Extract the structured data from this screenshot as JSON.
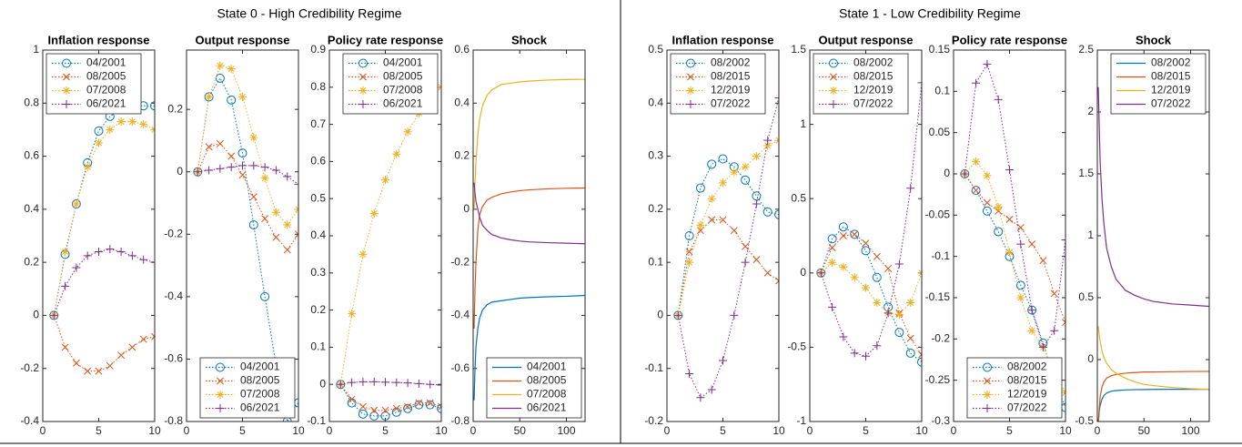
{
  "groups": [
    {
      "title": "State 0 - High Credibility Regime"
    },
    {
      "title": "State 1 - Low Credibility Regime"
    }
  ],
  "chart_data": [
    {
      "type": "line",
      "title": "Inflation response",
      "linestyle": "dotted",
      "legend": "upper left",
      "x": [
        1,
        2,
        3,
        4,
        5,
        6,
        7,
        8,
        9,
        10
      ],
      "xlim": [
        0,
        10
      ],
      "xticks": [
        0,
        5,
        10
      ],
      "ylim": [
        -0.4,
        1
      ],
      "yticks": [
        -0.4,
        -0.2,
        0,
        0.2,
        0.4,
        0.6,
        0.8,
        1
      ],
      "series": [
        {
          "name": "04/2001",
          "color": "#0072BD",
          "marker": "circle",
          "values": [
            0,
            0.23,
            0.42,
            0.575,
            0.695,
            0.75,
            0.78,
            0.79,
            0.79,
            0.79
          ]
        },
        {
          "name": "08/2005",
          "color": "#D95319",
          "marker": "x",
          "values": [
            0,
            -0.12,
            -0.18,
            -0.21,
            -0.21,
            -0.19,
            -0.15,
            -0.12,
            -0.09,
            -0.08
          ]
        },
        {
          "name": "07/2008",
          "color": "#EDB120",
          "marker": "asterisk",
          "values": [
            0,
            0.24,
            0.42,
            0.56,
            0.65,
            0.7,
            0.73,
            0.73,
            0.72,
            0.7
          ]
        },
        {
          "name": "06/2021",
          "color": "#7E2F8E",
          "marker": "plus",
          "values": [
            0,
            0.11,
            0.18,
            0.225,
            0.24,
            0.25,
            0.24,
            0.225,
            0.21,
            0.2
          ]
        }
      ]
    },
    {
      "type": "line",
      "title": "Output response",
      "linestyle": "dotted",
      "legend": "lower right",
      "x": [
        1,
        2,
        3,
        4,
        5,
        6,
        7,
        8,
        9,
        10
      ],
      "xlim": [
        0,
        10
      ],
      "xticks": [
        0,
        5,
        10
      ],
      "ylim": [
        -0.8,
        0.39
      ],
      "yticks": [
        -0.8,
        -0.6,
        -0.4,
        -0.2,
        0,
        0.2
      ],
      "series": [
        {
          "name": "04/2001",
          "color": "#0072BD",
          "marker": "circle",
          "values": [
            0,
            0.24,
            0.3,
            0.23,
            0.06,
            -0.17,
            -0.4,
            -0.62,
            -0.8,
            -0.74
          ]
        },
        {
          "name": "08/2005",
          "color": "#D95319",
          "marker": "x",
          "values": [
            0,
            0.08,
            0.09,
            0.05,
            -0.01,
            -0.08,
            -0.15,
            -0.21,
            -0.25,
            -0.2
          ]
        },
        {
          "name": "07/2008",
          "color": "#EDB120",
          "marker": "asterisk",
          "values": [
            0,
            0.24,
            0.34,
            0.33,
            0.24,
            0.11,
            -0.02,
            -0.13,
            -0.17,
            -0.12
          ]
        },
        {
          "name": "06/2021",
          "color": "#7E2F8E",
          "marker": "plus",
          "values": [
            0,
            0.005,
            0.01,
            0.015,
            0.02,
            0.02,
            0.015,
            0.005,
            -0.015,
            -0.04
          ]
        }
      ]
    },
    {
      "type": "line",
      "title": "Policy rate response",
      "linestyle": "dotted",
      "legend": "upper right",
      "x": [
        1,
        2,
        3,
        4,
        5,
        6,
        7,
        8,
        9,
        10
      ],
      "xlim": [
        0,
        10
      ],
      "xticks": [
        0,
        5,
        10
      ],
      "ylim": [
        -0.1,
        0.9
      ],
      "yticks": [
        -0.1,
        0,
        0.1,
        0.2,
        0.3,
        0.4,
        0.5,
        0.6,
        0.7,
        0.8,
        0.9
      ],
      "series": [
        {
          "name": "04/2001",
          "color": "#0072BD",
          "marker": "circle",
          "values": [
            0,
            -0.05,
            -0.08,
            -0.085,
            -0.085,
            -0.075,
            -0.065,
            -0.055,
            -0.055,
            -0.065
          ]
        },
        {
          "name": "08/2005",
          "color": "#D95319",
          "marker": "x",
          "values": [
            0,
            -0.04,
            -0.06,
            -0.07,
            -0.07,
            -0.065,
            -0.06,
            -0.05,
            -0.05,
            -0.06
          ]
        },
        {
          "name": "07/2008",
          "color": "#EDB120",
          "marker": "asterisk",
          "values": [
            0,
            0.19,
            0.35,
            0.46,
            0.55,
            0.62,
            0.68,
            0.73,
            0.77,
            0.8
          ]
        },
        {
          "name": "06/2021",
          "color": "#7E2F8E",
          "marker": "plus",
          "values": [
            0,
            0.005,
            0.007,
            0.007,
            0.006,
            0.005,
            0.004,
            0.002,
            0,
            -0.002
          ]
        }
      ]
    },
    {
      "type": "line",
      "title": "Shock",
      "linestyle": "solid",
      "legend": "lower right",
      "x": [
        1,
        2,
        3,
        5,
        7,
        10,
        15,
        20,
        30,
        40,
        50,
        60,
        80,
        100,
        120
      ],
      "xlim": [
        0,
        120
      ],
      "xticks": [
        0,
        50,
        100
      ],
      "ylim": [
        -0.8,
        0.6
      ],
      "yticks": [
        -0.8,
        -0.6,
        -0.4,
        -0.2,
        0,
        0.2,
        0.4,
        0.6
      ],
      "series": [
        {
          "name": "04/2001",
          "color": "#0072BD",
          "values": [
            -0.72,
            -0.6,
            -0.52,
            -0.45,
            -0.41,
            -0.38,
            -0.36,
            -0.35,
            -0.345,
            -0.34,
            -0.335,
            -0.333,
            -0.33,
            -0.328,
            -0.325
          ]
        },
        {
          "name": "08/2005",
          "color": "#D95319",
          "values": [
            -0.45,
            -0.3,
            -0.2,
            -0.08,
            -0.02,
            0.01,
            0.035,
            0.045,
            0.058,
            0.065,
            0.07,
            0.073,
            0.077,
            0.079,
            0.08
          ]
        },
        {
          "name": "07/2008",
          "color": "#EDB120",
          "values": [
            0,
            0.1,
            0.18,
            0.28,
            0.34,
            0.39,
            0.43,
            0.45,
            0.47,
            0.475,
            0.48,
            0.483,
            0.487,
            0.489,
            0.49
          ]
        },
        {
          "name": "06/2021",
          "color": "#7E2F8E",
          "values": [
            0.1,
            0.06,
            0.03,
            0,
            -0.03,
            -0.06,
            -0.08,
            -0.095,
            -0.108,
            -0.115,
            -0.12,
            -0.123,
            -0.126,
            -0.128,
            -0.13
          ]
        }
      ]
    },
    {
      "type": "line",
      "title": "Inflation response",
      "linestyle": "dotted",
      "legend": "upper left",
      "x": [
        1,
        2,
        3,
        4,
        5,
        6,
        7,
        8,
        9,
        10
      ],
      "xlim": [
        0,
        10
      ],
      "xticks": [
        0,
        5,
        10
      ],
      "ylim": [
        -0.2,
        0.5
      ],
      "yticks": [
        -0.2,
        -0.1,
        0,
        0.1,
        0.2,
        0.3,
        0.4,
        0.5
      ],
      "series": [
        {
          "name": "08/2002",
          "color": "#0072BD",
          "marker": "circle",
          "values": [
            0,
            0.15,
            0.24,
            0.285,
            0.295,
            0.28,
            0.255,
            0.225,
            0.195,
            0.19
          ]
        },
        {
          "name": "08/2015",
          "color": "#D95319",
          "marker": "x",
          "values": [
            0,
            0.12,
            0.16,
            0.18,
            0.18,
            0.16,
            0.13,
            0.105,
            0.08,
            0.065
          ]
        },
        {
          "name": "12/2019",
          "color": "#EDB120",
          "marker": "asterisk",
          "values": [
            0,
            0.1,
            0.17,
            0.22,
            0.25,
            0.27,
            0.28,
            0.3,
            0.32,
            0.33
          ]
        },
        {
          "name": "07/2022",
          "color": "#7E2F8E",
          "marker": "plus",
          "values": [
            0,
            -0.11,
            -0.155,
            -0.14,
            -0.085,
            0,
            0.1,
            0.21,
            0.33,
            0.41
          ]
        }
      ]
    },
    {
      "type": "line",
      "title": "Output response",
      "linestyle": "dotted",
      "legend": "upper left",
      "x": [
        1,
        2,
        3,
        4,
        5,
        6,
        7,
        8,
        9,
        10
      ],
      "xlim": [
        0,
        10
      ],
      "xticks": [
        0,
        5,
        10
      ],
      "ylim": [
        -1,
        1.5
      ],
      "yticks": [
        -1,
        -0.5,
        0,
        0.5,
        1,
        1.5
      ],
      "series": [
        {
          "name": "08/2002",
          "color": "#0072BD",
          "marker": "circle",
          "values": [
            0,
            0.23,
            0.31,
            0.26,
            0.15,
            -0.03,
            -0.23,
            -0.4,
            -0.54,
            -0.6
          ]
        },
        {
          "name": "08/2015",
          "color": "#D95319",
          "marker": "x",
          "values": [
            0,
            0.17,
            0.25,
            0.26,
            0.2,
            0.11,
            0.03,
            -0.27,
            -0.44,
            -0.55
          ]
        },
        {
          "name": "12/2019",
          "color": "#EDB120",
          "marker": "asterisk",
          "values": [
            0,
            0.07,
            0.04,
            -0.03,
            -0.1,
            -0.2,
            -0.27,
            -0.28,
            -0.2,
            0
          ]
        },
        {
          "name": "07/2022",
          "color": "#7E2F8E",
          "marker": "plus",
          "values": [
            0,
            -0.23,
            -0.43,
            -0.54,
            -0.56,
            -0.49,
            -0.27,
            0.06,
            0.57,
            1.28
          ]
        }
      ]
    },
    {
      "type": "line",
      "title": "Policy rate response",
      "linestyle": "dotted",
      "legend": "lower right",
      "x": [
        1,
        2,
        3,
        4,
        5,
        6,
        7,
        8,
        9,
        10
      ],
      "xlim": [
        0,
        10
      ],
      "xticks": [
        0,
        5,
        10
      ],
      "ylim": [
        -0.3,
        0.15
      ],
      "yticks": [
        -0.3,
        -0.25,
        -0.2,
        -0.15,
        -0.1,
        -0.05,
        0,
        0.05,
        0.1,
        0.15
      ],
      "series": [
        {
          "name": "08/2002",
          "color": "#0072BD",
          "marker": "circle",
          "values": [
            0,
            -0.02,
            -0.045,
            -0.07,
            -0.1,
            -0.135,
            -0.165,
            -0.205,
            -0.25,
            -0.283
          ]
        },
        {
          "name": "08/2015",
          "color": "#D95319",
          "marker": "x",
          "values": [
            0,
            -0.02,
            -0.035,
            -0.045,
            -0.055,
            -0.065,
            -0.085,
            -0.105,
            -0.145,
            -0.18
          ]
        },
        {
          "name": "12/2019",
          "color": "#EDB120",
          "marker": "asterisk",
          "values": [
            0,
            0.015,
            -0.002,
            -0.04,
            -0.095,
            -0.15,
            -0.19,
            -0.21,
            -0.24,
            -0.265
          ]
        },
        {
          "name": "07/2022",
          "color": "#7E2F8E",
          "marker": "plus",
          "values": [
            0,
            0.11,
            0.133,
            0.09,
            0.005,
            -0.085,
            -0.165,
            -0.21,
            -0.19,
            -0.08
          ]
        }
      ]
    },
    {
      "type": "line",
      "title": "Shock",
      "linestyle": "solid",
      "legend": "upper right",
      "x": [
        1,
        2,
        3,
        5,
        7,
        10,
        15,
        20,
        30,
        40,
        50,
        60,
        80,
        100,
        120
      ],
      "xlim": [
        0,
        120
      ],
      "xticks": [
        0,
        50,
        100
      ],
      "ylim": [
        -0.5,
        2.5
      ],
      "yticks": [
        -0.5,
        0,
        0.5,
        1,
        1.5,
        2,
        2.5
      ],
      "series": [
        {
          "name": "08/2002",
          "color": "#0072BD",
          "values": [
            -0.5,
            -0.42,
            -0.37,
            -0.32,
            -0.29,
            -0.27,
            -0.255,
            -0.25,
            -0.245,
            -0.243,
            -0.242,
            -0.241,
            -0.24,
            -0.24,
            -0.24
          ]
        },
        {
          "name": "08/2015",
          "color": "#D95319",
          "values": [
            -0.55,
            -0.4,
            -0.3,
            -0.22,
            -0.18,
            -0.15,
            -0.13,
            -0.12,
            -0.11,
            -0.105,
            -0.1,
            -0.1,
            -0.098,
            -0.096,
            -0.095
          ]
        },
        {
          "name": "12/2019",
          "color": "#EDB120",
          "values": [
            0.27,
            0.2,
            0.15,
            0.07,
            0.02,
            -0.03,
            -0.08,
            -0.11,
            -0.15,
            -0.18,
            -0.2,
            -0.21,
            -0.225,
            -0.235,
            -0.24
          ]
        },
        {
          "name": "07/2022",
          "color": "#7E2F8E",
          "values": [
            2.2,
            1.9,
            1.6,
            1.3,
            1.1,
            0.9,
            0.75,
            0.65,
            0.56,
            0.52,
            0.49,
            0.47,
            0.45,
            0.44,
            0.43
          ]
        }
      ]
    }
  ]
}
